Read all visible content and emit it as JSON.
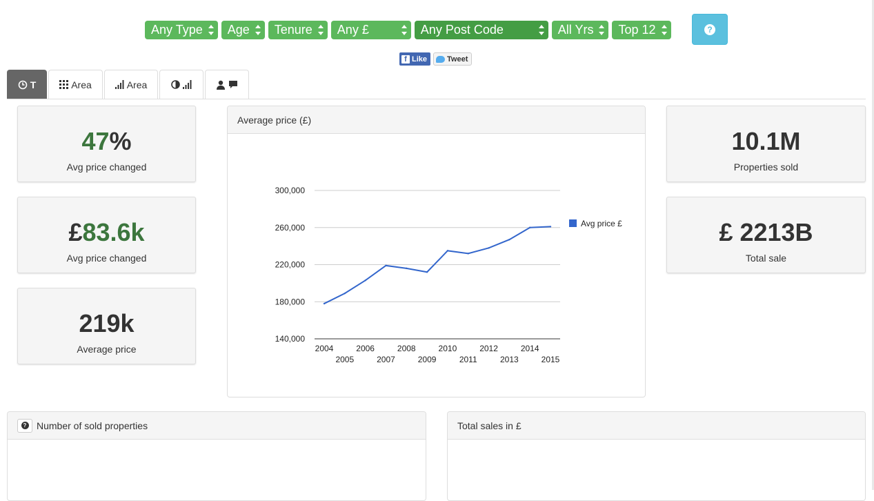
{
  "filters": [
    {
      "label": "Any Type"
    },
    {
      "label": "Age"
    },
    {
      "label": "Tenure"
    },
    {
      "label": "Any £"
    },
    {
      "label": "Any Post Code"
    },
    {
      "label": "All Yrs"
    },
    {
      "label": "Top 12"
    }
  ],
  "social": {
    "like": "Like",
    "tweet": "Tweet"
  },
  "tabs": [
    {
      "label": "T"
    },
    {
      "label": "Area"
    },
    {
      "label": "Area"
    },
    {
      "label": ""
    },
    {
      "label": ""
    }
  ],
  "stats_left": [
    {
      "prefix": "",
      "value": "47",
      "suffix": "%",
      "label": "Avg price changed"
    },
    {
      "prefix": "£",
      "value": "83.6k",
      "suffix": "",
      "label": "Avg price changed"
    },
    {
      "prefix": "",
      "value": "219k",
      "suffix": "",
      "label": "Average price"
    }
  ],
  "stats_right": [
    {
      "value": "10.1M",
      "label": "Properties sold"
    },
    {
      "value": "£ 2213B",
      "label": "Total sale"
    }
  ],
  "chart_panel": {
    "title": "Average price (£)"
  },
  "panels": {
    "sold": {
      "title": "Number of sold properties"
    },
    "sales": {
      "title": "Total sales in £"
    }
  },
  "colors": {
    "green": "#5cb85c",
    "dark_green": "#449d44",
    "info": "#5bc0de",
    "series": "#3366cc"
  },
  "chart_data": {
    "type": "line",
    "title": "",
    "xlabel": "",
    "ylabel": "",
    "x": [
      2004,
      2005,
      2006,
      2007,
      2008,
      2009,
      2010,
      2011,
      2012,
      2013,
      2014,
      2015
    ],
    "x_tick_labels": [
      "2004",
      "2005",
      "2006",
      "2007",
      "2008",
      "2009",
      "2010",
      "2011",
      "2012",
      "2013",
      "2014",
      "2015"
    ],
    "y_tick_labels": [
      "300,000",
      "260,000",
      "220,000",
      "180,000",
      "140,000"
    ],
    "y_ticks": [
      300000,
      260000,
      220000,
      180000,
      140000
    ],
    "ylim": [
      140000,
      300000
    ],
    "series": [
      {
        "name": "Avg price £",
        "color": "#3366cc",
        "values": [
          178000,
          189000,
          203000,
          219000,
          216000,
          212000,
          235000,
          232000,
          238000,
          247000,
          260000,
          261000
        ]
      }
    ],
    "legend": "right",
    "grid": true
  }
}
